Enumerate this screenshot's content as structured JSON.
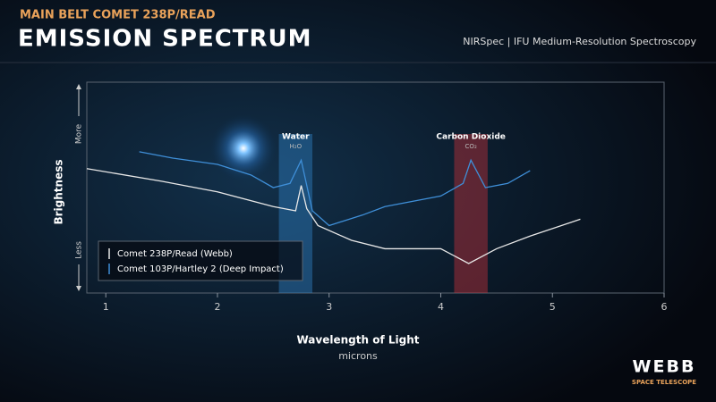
{
  "header": {
    "kicker": "MAIN BELT COMET 238P/READ",
    "title": "EMISSION SPECTRUM",
    "instrument": "NIRSpec | IFU Medium-Resolution Spectroscopy"
  },
  "chart_data": {
    "type": "line",
    "xlabel": "Wavelength of Light",
    "xunit": "microns",
    "ylabel": "Brightness",
    "ytop_label": "More",
    "ybottom_label": "Less",
    "xlim": [
      0.83,
      6
    ],
    "xticks": [
      1,
      2,
      3,
      4,
      5,
      6
    ],
    "ylim": [
      0,
      100
    ],
    "bands": [
      {
        "label": "Water",
        "sublabel": "H₂O",
        "x": [
          2.55,
          2.85
        ],
        "color": "#2f7fc0"
      },
      {
        "label": "Carbon Dioxide",
        "sublabel": "CO₂",
        "x": [
          4.12,
          4.42
        ],
        "color": "#c0303a"
      }
    ],
    "series": [
      {
        "name": "Comet 238P/Read (Webb)",
        "color": "#e8e8e8",
        "x": [
          0.83,
          1.5,
          2.0,
          2.5,
          2.7,
          2.75,
          2.8,
          2.9,
          3.2,
          3.5,
          4.0,
          4.25,
          4.5,
          4.8,
          5.25
        ],
        "values": [
          59,
          53,
          48,
          41,
          39,
          51,
          40,
          32,
          25,
          21,
          21,
          14,
          21,
          27,
          35
        ]
      },
      {
        "name": "Comet 103P/Hartley 2 (Deep Impact)",
        "color": "#3f8fd8",
        "x": [
          1.3,
          1.6,
          2.0,
          2.3,
          2.5,
          2.65,
          2.75,
          2.85,
          3.0,
          3.3,
          3.5,
          4.0,
          4.2,
          4.27,
          4.4,
          4.6,
          4.8
        ],
        "values": [
          67,
          64,
          61,
          56,
          50,
          52,
          63,
          39,
          32,
          37,
          41,
          46,
          52,
          63,
          50,
          52,
          58
        ]
      }
    ]
  },
  "logo": {
    "name": "WEBB",
    "tagline": "SPACE TELESCOPE"
  }
}
